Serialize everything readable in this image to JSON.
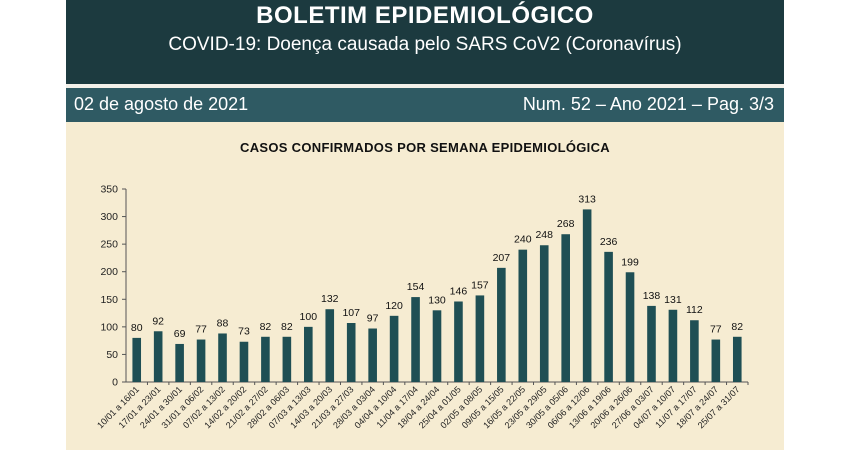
{
  "header": {
    "title": "BOLETIM EPIDEMIOLÓGICO",
    "subtitle": "COVID-19: Doença  causada pelo SARS CoV2 (Coronavírus)"
  },
  "infobar": {
    "date": "02 de agosto de 2021",
    "edition": "Num. 52 – Ano 2021 – Pag. 3/3"
  },
  "colors": {
    "header_bg": "#1c3a3f",
    "infobar_bg": "#2f5a63",
    "bar": "#1f4f54",
    "background": "#f6ecd2"
  },
  "chart_data": {
    "type": "bar",
    "title": "CASOS CONFIRMADOS POR SEMANA EPIDEMIOLÓGICA",
    "xlabel": "",
    "ylabel": "",
    "ylim": [
      0,
      350
    ],
    "yticks": [
      0,
      50,
      100,
      150,
      200,
      250,
      300,
      350
    ],
    "grid": false,
    "categories": [
      "10/01 a 16/01",
      "17/01 a 23/01",
      "24/01 a 30/01",
      "31/01 a 06/02",
      "07/02 a 13/02",
      "14/02 a 20/02",
      "21/02 a 27/02",
      "28/02 a 06/03",
      "07/03 a 13/03",
      "14/03 a 20/03",
      "21/03 a 27/03",
      "28/03 a 03/04",
      "04/04 a 10/04",
      "11/04 a 17/04",
      "18/04 a 24/04",
      "25/04 a 01/05",
      "02/05 a 08/05",
      "09/05 a 15/05",
      "16/05 a 22/05",
      "23/05 a 29/05",
      "30/05 a 05/06",
      "06/06 a 12/06",
      "13/06 a 19/06",
      "20/06 a 26/06",
      "27/06 a 03/07",
      "04/07 a 10/07",
      "11/07 a 17/07",
      "18/07 a 24/07",
      "25/07 a 31/07"
    ],
    "values": [
      80,
      92,
      69,
      77,
      88,
      73,
      82,
      82,
      100,
      132,
      107,
      97,
      120,
      154,
      130,
      146,
      157,
      207,
      240,
      248,
      268,
      313,
      236,
      199,
      138,
      131,
      112,
      77,
      82
    ]
  }
}
